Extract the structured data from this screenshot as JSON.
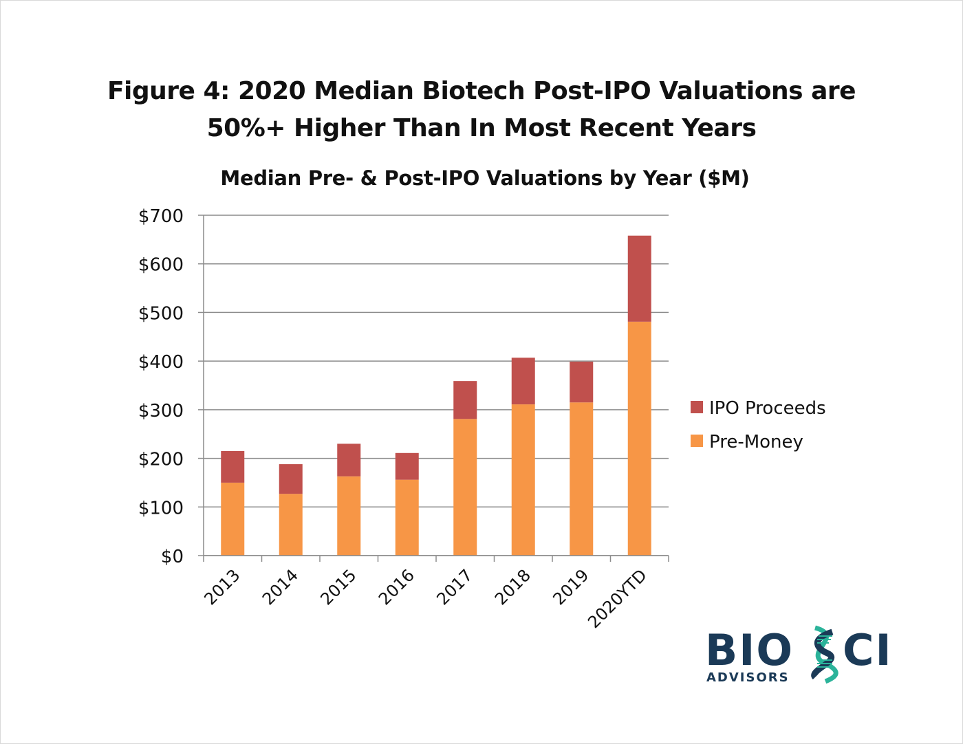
{
  "figure": {
    "title_line1": "Figure 4:  2020 Median Biotech Post-IPO Valuations are",
    "title_line2": "50%+ Higher Than In Most Recent Years"
  },
  "chart_data": {
    "type": "bar",
    "stacked": true,
    "title": "Median Pre- & Post-IPO Valuations by Year ($M)",
    "xlabel": "",
    "ylabel": "",
    "categories": [
      "2013",
      "2014",
      "2015",
      "2016",
      "2017",
      "2018",
      "2019",
      "2020YTD"
    ],
    "series": [
      {
        "name": "Pre-Money",
        "color": "#F79646",
        "values": [
          150,
          127,
          163,
          156,
          281,
          311,
          315,
          481
        ]
      },
      {
        "name": "IPO Proceeds",
        "color": "#C0504D",
        "values": [
          65,
          61,
          67,
          55,
          78,
          96,
          84,
          177
        ]
      }
    ],
    "ylim": [
      0,
      700
    ],
    "yticks": [
      0,
      100,
      200,
      300,
      400,
      500,
      600,
      700
    ],
    "ytick_labels": [
      "$0",
      "$100",
      "$200",
      "$300",
      "$400",
      "$500",
      "$600",
      "$700"
    ],
    "grid": true,
    "legend": {
      "placement": "right",
      "order": [
        "IPO Proceeds",
        "Pre-Money"
      ]
    }
  },
  "logo": {
    "name_part1": "BIO",
    "name_part2": "CI",
    "subtitle": "ADVISORS",
    "primary_color": "#1B3A57",
    "accent_color": "#2BB39A"
  }
}
